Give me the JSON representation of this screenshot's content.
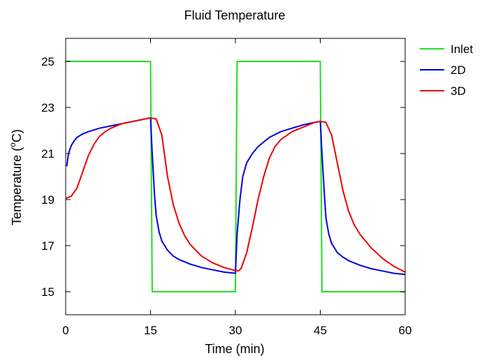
{
  "chart_data": {
    "type": "line",
    "title": "Fluid Temperature",
    "xlabel": "Time (min)",
    "ylabel_parts": [
      "Temperature (",
      "o",
      "C)"
    ],
    "xlim": [
      0,
      60
    ],
    "ylim": [
      14,
      26
    ],
    "xticks": [
      0,
      15,
      30,
      45,
      60
    ],
    "yticks": [
      15,
      17,
      19,
      21,
      23,
      25
    ],
    "grid": false,
    "legend_position": "outside-right",
    "series": [
      {
        "name": "Inlet",
        "color": "#22dd22",
        "x": [
          0,
          15,
          15.3,
          30,
          30.3,
          45,
          45.3,
          60
        ],
        "y": [
          25,
          25,
          15,
          15,
          25,
          25,
          15,
          15
        ]
      },
      {
        "name": "2D",
        "color": "#0000dd",
        "x": [
          0.2,
          0.5,
          1,
          1.5,
          2,
          3,
          4,
          6,
          8,
          10,
          12,
          14,
          15,
          15.3,
          15.7,
          16,
          16.5,
          17,
          18,
          19,
          20,
          22,
          24,
          26,
          28,
          30,
          30.3,
          30.8,
          31.3,
          32,
          33,
          34,
          36,
          38,
          40,
          42,
          44,
          45,
          45.3,
          45.7,
          46,
          46.5,
          47,
          48,
          49,
          50,
          52,
          54,
          56,
          58,
          60
        ],
        "y": [
          20.45,
          21.0,
          21.35,
          21.55,
          21.7,
          21.85,
          21.95,
          22.1,
          22.2,
          22.3,
          22.4,
          22.5,
          22.55,
          21.0,
          19.2,
          18.3,
          17.6,
          17.2,
          16.8,
          16.55,
          16.4,
          16.2,
          16.05,
          15.95,
          15.85,
          15.8,
          17.5,
          19.0,
          20.0,
          20.6,
          21.0,
          21.3,
          21.7,
          21.95,
          22.1,
          22.25,
          22.35,
          22.4,
          21.0,
          19.3,
          18.2,
          17.5,
          17.1,
          16.7,
          16.5,
          16.35,
          16.15,
          16.0,
          15.9,
          15.8,
          15.75
        ]
      },
      {
        "name": "3D",
        "color": "#ee0000",
        "x": [
          0,
          1,
          2,
          3,
          4,
          5,
          6,
          7,
          8,
          10,
          12,
          14,
          15,
          16,
          17,
          18,
          19,
          20,
          21,
          22,
          24,
          26,
          28,
          29.5,
          30.5,
          31,
          32,
          33,
          34,
          35,
          36,
          37,
          38,
          40,
          42,
          44,
          45,
          46,
          47,
          48,
          49,
          50,
          51,
          52,
          54,
          56,
          58,
          60
        ],
        "y": [
          19.05,
          19.15,
          19.5,
          20.2,
          20.9,
          21.4,
          21.75,
          21.95,
          22.1,
          22.3,
          22.4,
          22.5,
          22.55,
          22.5,
          21.8,
          20.0,
          18.8,
          18.0,
          17.45,
          17.05,
          16.55,
          16.25,
          16.05,
          15.95,
          15.9,
          16.0,
          16.7,
          17.8,
          19.0,
          20.0,
          20.8,
          21.3,
          21.6,
          21.95,
          22.15,
          22.35,
          22.4,
          22.35,
          21.8,
          20.6,
          19.4,
          18.5,
          17.9,
          17.5,
          16.9,
          16.45,
          16.1,
          15.85
        ]
      }
    ]
  }
}
